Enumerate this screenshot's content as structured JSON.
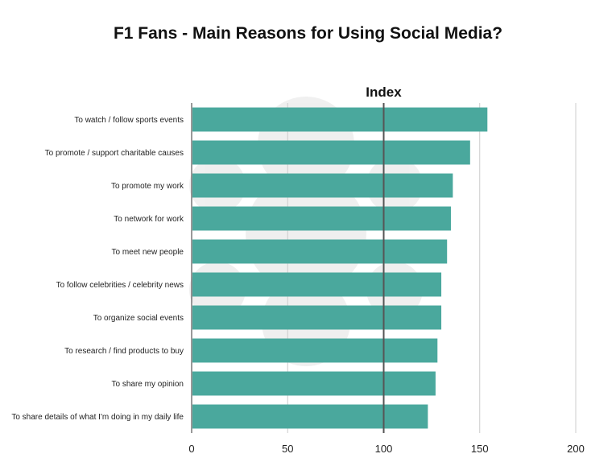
{
  "chart_data": {
    "type": "bar",
    "orientation": "horizontal",
    "title": "F1 Fans - Main Reasons for Using Social Media?",
    "reference_line": {
      "value": 100,
      "label": "Index"
    },
    "categories": [
      "To watch / follow sports events",
      "To promote / support charitable causes",
      "To promote my work",
      "To network for work",
      "To meet new people",
      "To follow celebrities / celebrity news",
      "To organize social events",
      "To research / find products to buy",
      "To share my opinion",
      "To share details of what I'm doing in my daily life"
    ],
    "values": [
      154,
      145,
      136,
      135,
      133,
      130,
      130,
      128,
      127,
      123
    ],
    "xlim": [
      0,
      200
    ],
    "xticks": [
      0,
      50,
      100,
      150,
      200
    ],
    "grid": true,
    "bar_color": "#4aa89d",
    "reference_line_color": "#555555"
  }
}
